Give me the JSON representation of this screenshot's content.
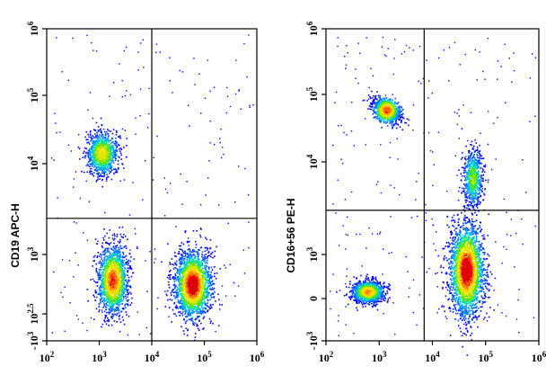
{
  "chart_data": [
    {
      "type": "scatter",
      "subtype": "flow-cytometry-pseudocolor-density",
      "title": "",
      "xlabel": "",
      "ylabel": "CD19 APC-H",
      "x_scale": "log",
      "y_scale": "log",
      "xlim": [
        100,
        1000000
      ],
      "ylim": [
        -1000,
        1000000
      ],
      "x_ticks": [
        {
          "label": "10",
          "sup": "2",
          "value": 100
        },
        {
          "label": "10",
          "sup": "3",
          "value": 1000
        },
        {
          "label": "10",
          "sup": "4",
          "value": 10000
        },
        {
          "label": "10",
          "sup": "5",
          "value": 100000
        },
        {
          "label": "10",
          "sup": "6",
          "value": 1000000
        }
      ],
      "y_ticks": [
        {
          "label": "-10",
          "sup": "3",
          "value": -1000
        },
        {
          "label": "10",
          "sup": "2.5",
          "value": 316
        },
        {
          "label": "10",
          "sup": "3",
          "value": 1000
        },
        {
          "label": "10",
          "sup": "4",
          "value": 10000
        },
        {
          "label": "10",
          "sup": "5",
          "value": 100000
        },
        {
          "label": "10",
          "sup": "6",
          "value": 1000000
        }
      ],
      "quadrant_gate": {
        "x": 10000,
        "y": 2500
      },
      "populations": [
        {
          "center": [
            1500,
            10000
          ],
          "density": "medium"
        },
        {
          "center": [
            1500,
            300
          ],
          "density": "high"
        },
        {
          "center": [
            55000,
            300
          ],
          "density": "very-high"
        }
      ],
      "grid": false,
      "legend": "none"
    },
    {
      "type": "scatter",
      "subtype": "flow-cytometry-pseudocolor-density",
      "title": "",
      "xlabel": "",
      "ylabel": "CD16+56 PE-H",
      "x_scale": "log",
      "y_scale": "log",
      "xlim": [
        100,
        1000000
      ],
      "ylim": [
        -1000,
        1000000
      ],
      "x_ticks": [
        {
          "label": "10",
          "sup": "2",
          "value": 100
        },
        {
          "label": "10",
          "sup": "3",
          "value": 1000
        },
        {
          "label": "10",
          "sup": "4",
          "value": 10000
        },
        {
          "label": "10",
          "sup": "5",
          "value": 100000
        },
        {
          "label": "10",
          "sup": "6",
          "value": 1000000
        }
      ],
      "y_ticks": [
        {
          "label": "-10",
          "sup": "3",
          "value": -1000
        },
        {
          "label": "0",
          "sup": "",
          "value": 0
        },
        {
          "label": "10",
          "sup": "3",
          "value": 1000
        },
        {
          "label": "10",
          "sup": "4",
          "value": 10000
        },
        {
          "label": "10",
          "sup": "5",
          "value": 100000
        },
        {
          "label": "10",
          "sup": "6",
          "value": 1000000
        }
      ],
      "quadrant_gate": {
        "x": 7000,
        "y": 3000
      },
      "populations": [
        {
          "center": [
            1700,
            50000
          ],
          "density": "high"
        },
        {
          "center": [
            1000,
            0
          ],
          "density": "high"
        },
        {
          "center": [
            60000,
            800
          ],
          "density": "very-high"
        },
        {
          "center": [
            80000,
            8000
          ],
          "density": "medium"
        }
      ],
      "grid": false,
      "legend": "none"
    }
  ],
  "colors": {
    "density_scale": [
      "#0000ff",
      "#00a0ff",
      "#00e0a0",
      "#7ee000",
      "#ffe000",
      "#ff7000",
      "#e00000"
    ],
    "axes": "#000000"
  }
}
